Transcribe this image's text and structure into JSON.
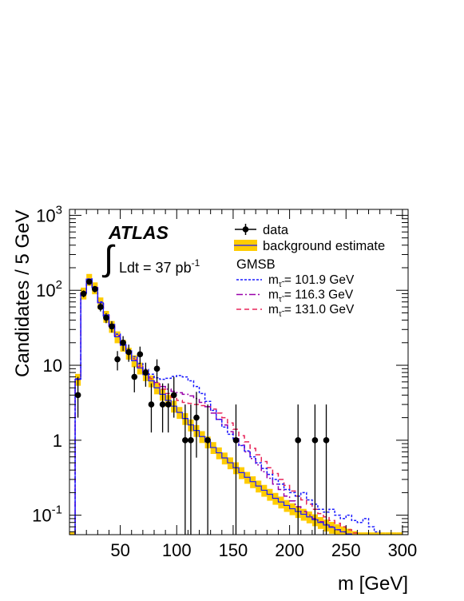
{
  "chart_data": {
    "type": "histogram",
    "experiment": "ATLAS",
    "luminosity": {
      "prefix": "Ldt = 37 pb",
      "sup": "-1"
    },
    "xlabel": "m [GeV]",
    "ylabel": "Candidates / 5 GeV",
    "xlim": [
      5,
      305
    ],
    "ylim": [
      0.055,
      1200
    ],
    "yscale": "log",
    "xticks": [
      50,
      100,
      150,
      200,
      250,
      300
    ],
    "yticks": [
      {
        "value": 0.1,
        "base": "10",
        "exp": "-1"
      },
      {
        "value": 1,
        "base": "1",
        "exp": ""
      },
      {
        "value": 10,
        "base": "10",
        "exp": ""
      },
      {
        "value": 100,
        "base": "10",
        "exp": "2"
      },
      {
        "value": 1000,
        "base": "10",
        "exp": "3"
      }
    ],
    "legend": {
      "data_label": "data",
      "bkg_label": "background estimate",
      "group_title": "GMSB",
      "signal_prefix": "m",
      "signal_sub": "τ̃",
      "placement": "top-right"
    },
    "bin_edges": [
      5,
      10,
      15,
      20,
      25,
      30,
      35,
      40,
      45,
      50,
      55,
      60,
      65,
      70,
      75,
      80,
      85,
      90,
      95,
      100,
      105,
      110,
      115,
      120,
      125,
      130,
      135,
      140,
      145,
      150,
      155,
      160,
      165,
      170,
      175,
      180,
      185,
      190,
      195,
      200,
      205,
      210,
      215,
      220,
      225,
      230,
      235,
      240,
      245,
      250,
      255,
      260,
      265,
      270,
      275,
      280,
      285,
      290,
      295,
      300
    ],
    "background": {
      "name": "background estimate",
      "color": "#ffcc00",
      "values": [
        0.05,
        6.5,
        92,
        140,
        108,
        68,
        45,
        33,
        24,
        18.5,
        14.5,
        11.5,
        9.2,
        7.5,
        6.2,
        5.0,
        4.1,
        3.4,
        2.85,
        2.35,
        1.95,
        1.6,
        1.35,
        1.12,
        0.95,
        0.8,
        0.68,
        0.58,
        0.5,
        0.43,
        0.37,
        0.32,
        0.28,
        0.245,
        0.215,
        0.19,
        0.168,
        0.15,
        0.135,
        0.122,
        0.112,
        0.103,
        0.095,
        0.087,
        0.08,
        0.074,
        0.069,
        0.064,
        0.06,
        0.056,
        0.052,
        0.05,
        0.05,
        0.05,
        0.05,
        0.05,
        0.05,
        0.05,
        0.05
      ],
      "band_rel_error": 0.18
    },
    "signals": [
      {
        "label": "= 101.9 GeV",
        "color": "#1a1aff",
        "dash": "3,2",
        "values": [
          0.05,
          6.6,
          93,
          142,
          110,
          70,
          47,
          35,
          26,
          20,
          16,
          13,
          10.5,
          8.8,
          7.6,
          6.8,
          6.5,
          6.7,
          7.1,
          7.3,
          7.0,
          6.2,
          5.2,
          4.2,
          3.3,
          2.5,
          1.9,
          1.5,
          1.2,
          1.0,
          0.85,
          0.72,
          0.6,
          0.5,
          0.42,
          0.35,
          0.3,
          0.26,
          0.22,
          0.2,
          0.18,
          0.2,
          0.16,
          0.14,
          0.12,
          0.11,
          0.12,
          0.1,
          0.09,
          0.1,
          0.085,
          0.08,
          0.09,
          0.07,
          0.06,
          0.05,
          0.05,
          0.05,
          0.05
        ]
      },
      {
        "label": "= 116.3 GeV",
        "color": "#9900aa",
        "dash": "8,3,2,3",
        "values": [
          0.05,
          6.5,
          92,
          141,
          109,
          69,
          46,
          34,
          25,
          19.2,
          15.2,
          12.2,
          9.9,
          8.2,
          6.9,
          5.9,
          5.2,
          4.8,
          4.5,
          4.3,
          4.1,
          3.9,
          3.6,
          3.2,
          2.8,
          2.3,
          1.9,
          1.6,
          1.3,
          1.05,
          0.86,
          0.7,
          0.57,
          0.47,
          0.38,
          0.31,
          0.26,
          0.22,
          0.18,
          0.155,
          0.13,
          0.112,
          0.1,
          0.09,
          0.082,
          0.076,
          0.07,
          0.064,
          0.06,
          0.056,
          0.052,
          0.05,
          0.05,
          0.05,
          0.05,
          0.05,
          0.05,
          0.05,
          0.05
        ]
      },
      {
        "label": "= 131.0 GeV",
        "color": "#e8265a",
        "dash": "6,4",
        "values": [
          0.05,
          6.5,
          92,
          140.5,
          108.5,
          68.5,
          45.5,
          33.5,
          24.5,
          18.8,
          14.8,
          11.8,
          9.6,
          7.9,
          6.6,
          5.6,
          4.8,
          4.2,
          3.7,
          3.4,
          3.2,
          3.1,
          3.0,
          2.9,
          2.8,
          2.6,
          2.3,
          2.0,
          1.7,
          1.4,
          1.15,
          0.95,
          0.78,
          0.64,
          0.52,
          0.43,
          0.36,
          0.3,
          0.25,
          0.21,
          0.18,
          0.16,
          0.14,
          0.12,
          0.105,
          0.095,
          0.085,
          0.078,
          0.07,
          0.064,
          0.058,
          0.054,
          0.05,
          0.05,
          0.05,
          0.05,
          0.05,
          0.05,
          0.05
        ]
      }
    ],
    "data_points": [
      {
        "x": 12.5,
        "y": 4
      },
      {
        "x": 17.5,
        "y": 90
      },
      {
        "x": 22.5,
        "y": 130
      },
      {
        "x": 27.5,
        "y": 104
      },
      {
        "x": 32.5,
        "y": 60
      },
      {
        "x": 37.5,
        "y": 43
      },
      {
        "x": 42.5,
        "y": 33
      },
      {
        "x": 47.5,
        "y": 12
      },
      {
        "x": 52.5,
        "y": 20
      },
      {
        "x": 57.5,
        "y": 15
      },
      {
        "x": 62.5,
        "y": 7
      },
      {
        "x": 67.5,
        "y": 14
      },
      {
        "x": 72.5,
        "y": 8
      },
      {
        "x": 77.5,
        "y": 3
      },
      {
        "x": 82.5,
        "y": 9
      },
      {
        "x": 87.5,
        "y": 3
      },
      {
        "x": 92.5,
        "y": 3
      },
      {
        "x": 97.5,
        "y": 4
      },
      {
        "x": 107.5,
        "y": 1
      },
      {
        "x": 112.5,
        "y": 1
      },
      {
        "x": 117.5,
        "y": 2
      },
      {
        "x": 127.5,
        "y": 1
      },
      {
        "x": 152.5,
        "y": 1
      },
      {
        "x": 207.5,
        "y": 1
      },
      {
        "x": 222.5,
        "y": 1
      },
      {
        "x": 232.5,
        "y": 1
      }
    ]
  }
}
